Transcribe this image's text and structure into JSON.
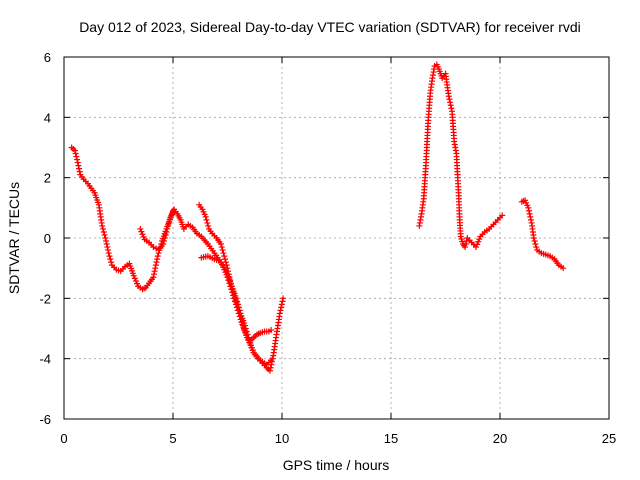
{
  "chart_data": {
    "type": "scatter",
    "title": "Day 012 of 2023, Sidereal Day-to-day VTEC variation (SDTVAR) for receiver rvdi",
    "xlabel": "GPS time / hours",
    "ylabel": "SDTVAR / TECUs",
    "xlim": [
      0,
      25
    ],
    "ylim": [
      -6,
      6
    ],
    "xticks": [
      0,
      5,
      10,
      15,
      20,
      25
    ],
    "yticks": [
      -6,
      -4,
      -2,
      0,
      2,
      4,
      6
    ],
    "xtick_labels": [
      "0",
      "5",
      "10",
      "15",
      "20",
      "25"
    ],
    "ytick_labels": [
      "-6",
      "-4",
      "-2",
      "0",
      "2",
      "4",
      "6"
    ],
    "grid": true,
    "marker": "plus",
    "color": "#ff0000",
    "series": [
      {
        "name": "segment-1",
        "x": [
          0.35,
          0.5,
          0.6,
          0.75,
          0.9,
          1.1,
          1.4,
          1.6,
          1.75,
          1.9,
          2.05,
          2.2,
          2.4,
          2.6,
          2.8,
          3.0,
          3.2,
          3.4,
          3.6,
          3.75,
          3.9,
          4.1,
          4.3,
          4.5,
          4.7,
          4.9,
          5.05,
          5.2,
          5.35,
          5.5,
          5.7,
          5.9,
          6.1,
          6.3,
          6.6,
          6.9,
          7.2,
          7.5,
          7.8,
          8.1,
          8.4,
          8.7,
          9.0,
          9.3,
          9.5
        ],
        "y": [
          3.0,
          2.9,
          2.6,
          2.1,
          1.95,
          1.8,
          1.5,
          1.1,
          0.4,
          0.0,
          -0.5,
          -0.9,
          -1.05,
          -1.1,
          -0.95,
          -0.85,
          -1.25,
          -1.6,
          -1.7,
          -1.65,
          -1.5,
          -1.3,
          -0.6,
          -0.1,
          0.3,
          0.7,
          0.95,
          0.8,
          0.6,
          0.3,
          0.45,
          0.35,
          0.15,
          0.05,
          -0.2,
          -0.5,
          -0.8,
          -1.3,
          -2.0,
          -2.7,
          -3.3,
          -3.8,
          -4.05,
          -4.2,
          -4.05
        ]
      },
      {
        "name": "segment-2",
        "x": [
          3.5,
          3.7,
          3.9,
          4.1,
          4.35,
          4.55,
          4.7,
          4.85,
          5.0
        ],
        "y": [
          0.3,
          -0.05,
          -0.15,
          -0.3,
          -0.4,
          -0.2,
          0.2,
          0.6,
          0.9
        ]
      },
      {
        "name": "segment-3",
        "x": [
          6.2,
          6.35,
          6.5,
          6.65,
          6.8,
          7.0,
          7.2,
          7.35,
          7.5,
          7.65,
          7.8,
          7.95,
          8.1,
          8.25,
          8.4,
          8.55,
          8.7,
          8.85,
          9.0,
          9.2,
          9.4,
          9.5
        ],
        "y": [
          1.1,
          0.95,
          0.7,
          0.3,
          0.15,
          0.0,
          -0.2,
          -0.6,
          -1.0,
          -1.5,
          -1.9,
          -2.2,
          -2.6,
          -3.0,
          -3.3,
          -3.4,
          -3.3,
          -3.2,
          -3.15,
          -3.1,
          -3.1,
          -3.05
        ]
      },
      {
        "name": "segment-4",
        "x": [
          6.3,
          6.6,
          6.9,
          7.1,
          7.3,
          7.5,
          7.7,
          7.9,
          8.1,
          8.3,
          8.5,
          8.7,
          8.9,
          9.1,
          9.3,
          9.45,
          9.6,
          9.75,
          9.9,
          10.05
        ],
        "y": [
          -0.65,
          -0.6,
          -0.7,
          -0.75,
          -0.9,
          -1.2,
          -1.6,
          -2.0,
          -2.5,
          -2.9,
          -3.4,
          -3.8,
          -4.0,
          -4.15,
          -4.3,
          -4.4,
          -3.9,
          -3.2,
          -2.5,
          -2.0
        ]
      },
      {
        "name": "segment-5",
        "x": [
          16.3,
          16.4,
          16.5,
          16.6,
          16.7,
          16.8,
          16.9,
          17.0,
          17.1,
          17.2,
          17.35,
          17.5,
          17.65,
          17.8,
          17.9,
          18.0,
          18.1,
          18.15,
          18.2,
          18.3,
          18.4,
          18.5,
          18.7,
          18.9,
          19.1,
          19.3,
          19.5,
          19.7,
          19.9,
          20.1
        ],
        "y": [
          0.4,
          0.8,
          1.3,
          2.4,
          3.8,
          4.8,
          5.3,
          5.7,
          5.75,
          5.6,
          5.3,
          5.45,
          4.7,
          4.2,
          3.2,
          2.8,
          1.5,
          0.6,
          0.05,
          -0.2,
          -0.3,
          0.0,
          -0.15,
          -0.3,
          0.05,
          0.2,
          0.3,
          0.45,
          0.6,
          0.75
        ]
      },
      {
        "name": "segment-6",
        "x": [
          21.0,
          21.15,
          21.3,
          21.45,
          21.55,
          21.7,
          21.9,
          22.1,
          22.3,
          22.5,
          22.7,
          22.9
        ],
        "y": [
          1.2,
          1.25,
          1.0,
          0.5,
          0.0,
          -0.4,
          -0.5,
          -0.55,
          -0.6,
          -0.7,
          -0.9,
          -1.0
        ]
      }
    ]
  }
}
